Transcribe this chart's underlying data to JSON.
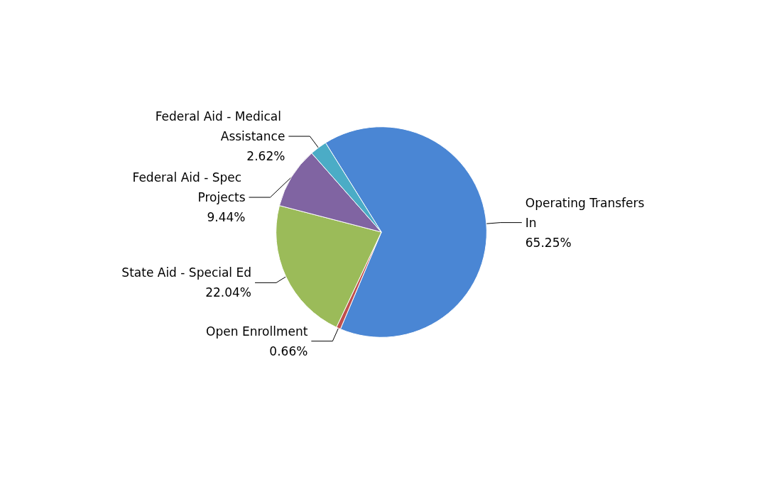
{
  "chart_data": {
    "type": "pie",
    "categories": [
      "Operating Transfers In",
      "Open Enrollment",
      "State Aid - Special Ed",
      "Federal Aid - Spec Projects",
      "Federal Aid - Medical Assistance"
    ],
    "values": [
      65.25,
      0.66,
      22.04,
      9.44,
      2.62
    ],
    "value_labels": [
      "65.25%",
      "0.66%",
      "22.04%",
      "9.44%",
      "2.62%"
    ],
    "colors": [
      "#4a86d4",
      "#c0504d",
      "#9bbb59",
      "#8064a2",
      "#4bacc6"
    ],
    "legend": false
  }
}
